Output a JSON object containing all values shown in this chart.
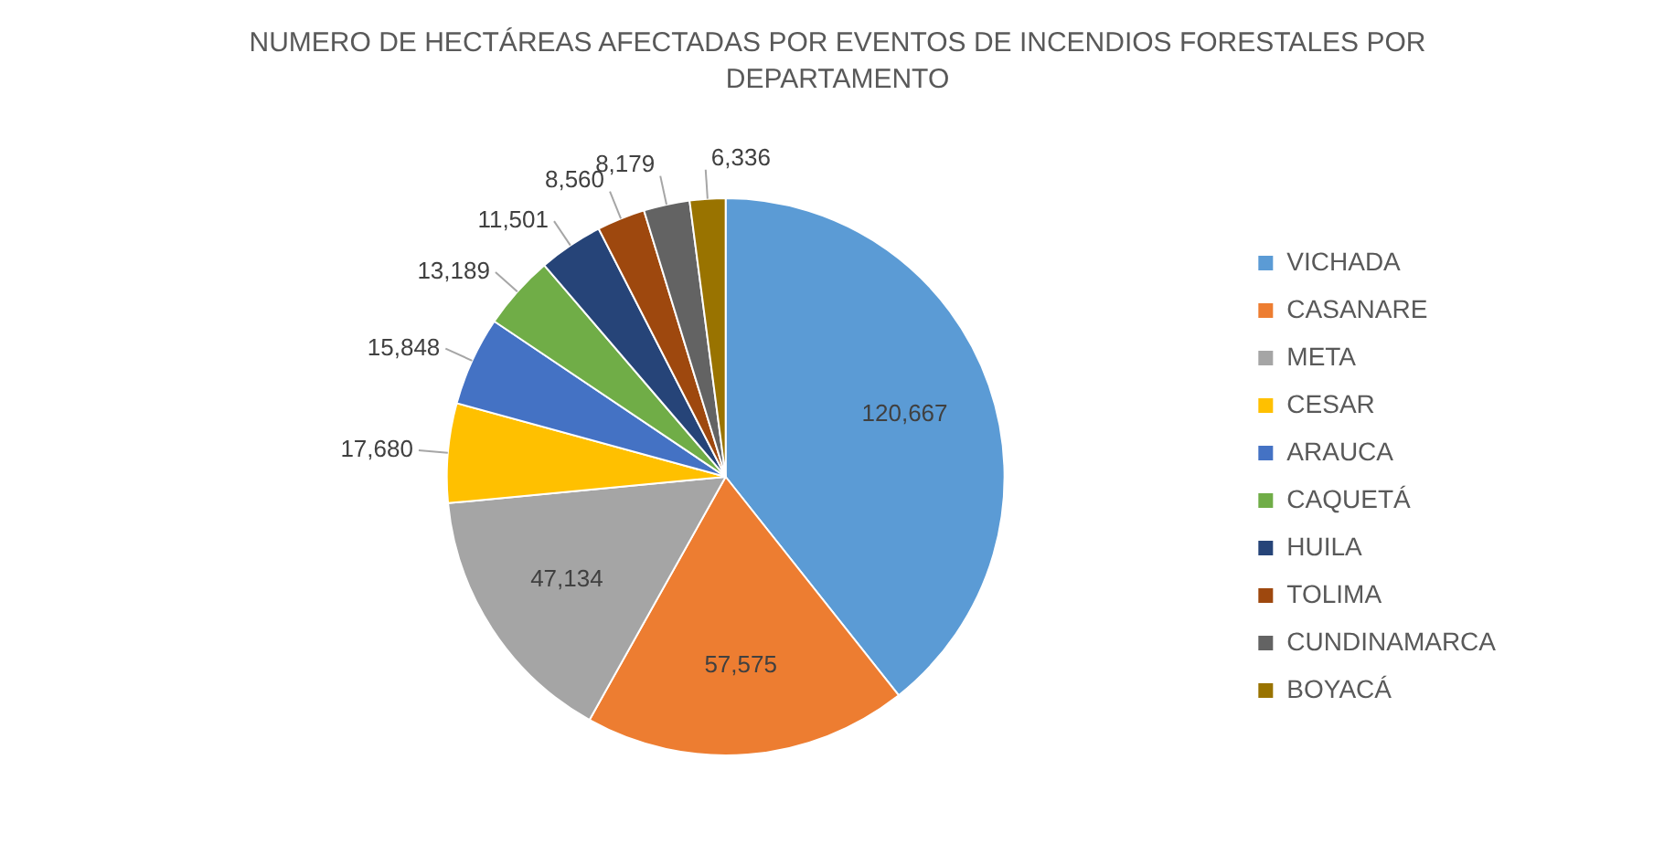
{
  "chart_data": {
    "type": "pie",
    "title": "NUMERO DE HECTÁREAS AFECTADAS POR EVENTOS DE INCENDIOS  FORESTALES POR DEPARTAMENTO",
    "categories": [
      "VICHADA",
      "CASANARE",
      "META",
      "CESAR",
      "ARAUCA",
      "CAQUETÁ",
      "HUILA",
      "TOLIMA",
      "CUNDINAMARCA",
      "BOYACÁ"
    ],
    "values": [
      120667,
      57575,
      47134,
      17680,
      15848,
      13189,
      11501,
      8560,
      8179,
      6336
    ],
    "colors": [
      "#5b9bd5",
      "#ed7d31",
      "#a5a5a5",
      "#ffc000",
      "#4472c4",
      "#70ad47",
      "#264478",
      "#9e480e",
      "#636363",
      "#997300"
    ],
    "value_labels": [
      "120,667",
      "57,575",
      "47,134",
      "17,680",
      "15,848",
      "13,189",
      "11,501",
      "8,560",
      "8,179",
      "6,336"
    ],
    "legend": "right"
  }
}
